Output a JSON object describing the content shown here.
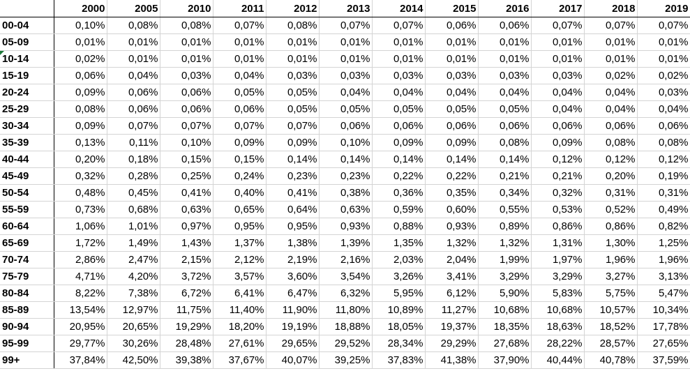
{
  "table": {
    "columns": [
      "2000",
      "2005",
      "2010",
      "2011",
      "2012",
      "2013",
      "2014",
      "2015",
      "2016",
      "2017",
      "2018",
      "2019"
    ],
    "rows": [
      {
        "label": "00-04",
        "values": [
          "0,10%",
          "0,08%",
          "0,08%",
          "0,07%",
          "0,08%",
          "0,07%",
          "0,07%",
          "0,06%",
          "0,06%",
          "0,07%",
          "0,07%",
          "0,07%"
        ]
      },
      {
        "label": "05-09",
        "values": [
          "0,01%",
          "0,01%",
          "0,01%",
          "0,01%",
          "0,01%",
          "0,01%",
          "0,01%",
          "0,01%",
          "0,01%",
          "0,01%",
          "0,01%",
          "0,01%"
        ]
      },
      {
        "label": "10-14",
        "values": [
          "0,02%",
          "0,01%",
          "0,01%",
          "0,01%",
          "0,01%",
          "0,01%",
          "0,01%",
          "0,01%",
          "0,01%",
          "0,01%",
          "0,01%",
          "0,01%"
        ]
      },
      {
        "label": "15-19",
        "values": [
          "0,06%",
          "0,04%",
          "0,03%",
          "0,04%",
          "0,03%",
          "0,03%",
          "0,03%",
          "0,03%",
          "0,03%",
          "0,03%",
          "0,02%",
          "0,02%"
        ]
      },
      {
        "label": "20-24",
        "values": [
          "0,09%",
          "0,06%",
          "0,06%",
          "0,05%",
          "0,05%",
          "0,04%",
          "0,04%",
          "0,04%",
          "0,04%",
          "0,04%",
          "0,04%",
          "0,03%"
        ]
      },
      {
        "label": "25-29",
        "values": [
          "0,08%",
          "0,06%",
          "0,06%",
          "0,06%",
          "0,05%",
          "0,05%",
          "0,05%",
          "0,05%",
          "0,05%",
          "0,04%",
          "0,04%",
          "0,04%"
        ]
      },
      {
        "label": "30-34",
        "values": [
          "0,09%",
          "0,07%",
          "0,07%",
          "0,07%",
          "0,07%",
          "0,06%",
          "0,06%",
          "0,06%",
          "0,06%",
          "0,06%",
          "0,06%",
          "0,06%"
        ]
      },
      {
        "label": "35-39",
        "values": [
          "0,13%",
          "0,11%",
          "0,10%",
          "0,09%",
          "0,09%",
          "0,10%",
          "0,09%",
          "0,09%",
          "0,08%",
          "0,09%",
          "0,08%",
          "0,08%"
        ]
      },
      {
        "label": "40-44",
        "values": [
          "0,20%",
          "0,18%",
          "0,15%",
          "0,15%",
          "0,14%",
          "0,14%",
          "0,14%",
          "0,14%",
          "0,14%",
          "0,12%",
          "0,12%",
          "0,12%"
        ]
      },
      {
        "label": "45-49",
        "values": [
          "0,32%",
          "0,28%",
          "0,25%",
          "0,24%",
          "0,23%",
          "0,23%",
          "0,22%",
          "0,22%",
          "0,21%",
          "0,21%",
          "0,20%",
          "0,19%"
        ]
      },
      {
        "label": "50-54",
        "values": [
          "0,48%",
          "0,45%",
          "0,41%",
          "0,40%",
          "0,41%",
          "0,38%",
          "0,36%",
          "0,35%",
          "0,34%",
          "0,32%",
          "0,31%",
          "0,31%"
        ]
      },
      {
        "label": "55-59",
        "values": [
          "0,73%",
          "0,68%",
          "0,63%",
          "0,65%",
          "0,64%",
          "0,63%",
          "0,59%",
          "0,60%",
          "0,55%",
          "0,53%",
          "0,52%",
          "0,49%"
        ]
      },
      {
        "label": "60-64",
        "values": [
          "1,06%",
          "1,01%",
          "0,97%",
          "0,95%",
          "0,95%",
          "0,93%",
          "0,88%",
          "0,93%",
          "0,89%",
          "0,86%",
          "0,86%",
          "0,82%"
        ]
      },
      {
        "label": "65-69",
        "values": [
          "1,72%",
          "1,49%",
          "1,43%",
          "1,37%",
          "1,38%",
          "1,39%",
          "1,35%",
          "1,32%",
          "1,32%",
          "1,31%",
          "1,30%",
          "1,25%"
        ]
      },
      {
        "label": "70-74",
        "values": [
          "2,86%",
          "2,47%",
          "2,15%",
          "2,12%",
          "2,19%",
          "2,16%",
          "2,03%",
          "2,04%",
          "1,99%",
          "1,97%",
          "1,96%",
          "1,96%"
        ]
      },
      {
        "label": "75-79",
        "values": [
          "4,71%",
          "4,20%",
          "3,72%",
          "3,57%",
          "3,60%",
          "3,54%",
          "3,26%",
          "3,41%",
          "3,29%",
          "3,29%",
          "3,27%",
          "3,13%"
        ]
      },
      {
        "label": "80-84",
        "values": [
          "8,22%",
          "7,38%",
          "6,72%",
          "6,41%",
          "6,47%",
          "6,32%",
          "5,95%",
          "6,12%",
          "5,90%",
          "5,83%",
          "5,75%",
          "5,47%"
        ]
      },
      {
        "label": "85-89",
        "values": [
          "13,54%",
          "12,97%",
          "11,75%",
          "11,40%",
          "11,90%",
          "11,80%",
          "10,89%",
          "11,27%",
          "10,68%",
          "10,68%",
          "10,57%",
          "10,34%"
        ]
      },
      {
        "label": "90-94",
        "values": [
          "20,95%",
          "20,65%",
          "19,29%",
          "18,20%",
          "19,19%",
          "18,88%",
          "18,05%",
          "19,37%",
          "18,35%",
          "18,63%",
          "18,52%",
          "17,78%"
        ]
      },
      {
        "label": "95-99",
        "values": [
          "29,77%",
          "30,26%",
          "28,48%",
          "27,61%",
          "29,65%",
          "29,52%",
          "28,34%",
          "29,29%",
          "27,68%",
          "28,22%",
          "28,57%",
          "27,65%"
        ]
      },
      {
        "label": "99+",
        "values": [
          "37,84%",
          "42,50%",
          "39,38%",
          "37,67%",
          "40,07%",
          "39,25%",
          "37,83%",
          "41,38%",
          "37,90%",
          "40,44%",
          "40,78%",
          "37,59%"
        ]
      }
    ]
  },
  "annotations": {
    "comment_indicator_color": "#1e7a3a",
    "comment_indicator_row": "10-14"
  }
}
